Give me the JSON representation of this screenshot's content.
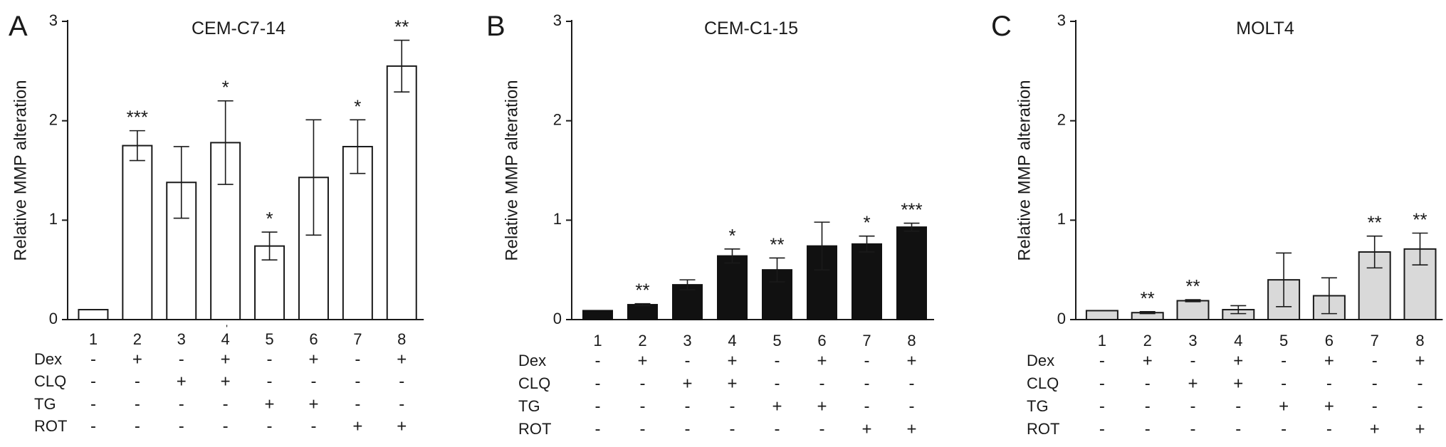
{
  "chart_data": [
    {
      "panel_label": "A",
      "type": "bar",
      "title": "CEM-C7-14",
      "ylabel": "Relative MMP alteration",
      "ylim": [
        0,
        3
      ],
      "yticks": [
        "0",
        "1",
        "2",
        "3"
      ],
      "categories": [
        "1",
        "2",
        "3",
        "4",
        "5",
        "6",
        "7",
        "8"
      ],
      "values": [
        0.1,
        1.75,
        1.38,
        1.78,
        0.74,
        1.43,
        1.74,
        2.55
      ],
      "errors": [
        0.0,
        0.15,
        0.36,
        0.42,
        0.14,
        0.58,
        0.27,
        0.26
      ],
      "significance": [
        "",
        "***",
        "",
        "*",
        "*",
        "",
        "*",
        "**"
      ],
      "bar_fill": "#ffffff",
      "bar_stroke": "#1a1a1a",
      "extra_mark_on_category_4": "'",
      "treatments": [
        {
          "name": "Dex",
          "signs": [
            "-",
            "+",
            "-",
            "+",
            "-",
            "+",
            "-",
            "+"
          ]
        },
        {
          "name": "CLQ",
          "signs": [
            "-",
            "-",
            "+",
            "+",
            "-",
            "-",
            "-",
            "-"
          ]
        },
        {
          "name": "TG",
          "signs": [
            "-",
            "-",
            "-",
            "-",
            "+",
            "+",
            "-",
            "-"
          ]
        },
        {
          "name": "ROT",
          "signs": [
            "-",
            "-",
            "-",
            "-",
            "-",
            "-",
            "+",
            "+"
          ]
        }
      ]
    },
    {
      "panel_label": "B",
      "type": "bar",
      "title": "CEM-C1-15",
      "ylabel": "Relative MMP alteration",
      "ylim": [
        0,
        3
      ],
      "yticks": [
        "0",
        "1",
        "2",
        "3"
      ],
      "categories": [
        "1",
        "2",
        "3",
        "4",
        "5",
        "6",
        "7",
        "8"
      ],
      "values": [
        0.09,
        0.15,
        0.35,
        0.64,
        0.5,
        0.74,
        0.76,
        0.93
      ],
      "errors": [
        0.0,
        0.01,
        0.05,
        0.07,
        0.12,
        0.24,
        0.08,
        0.04
      ],
      "significance": [
        "",
        "**",
        "",
        "*",
        "**",
        "",
        "*",
        "***"
      ],
      "bar_fill": "#111111",
      "bar_stroke": "#111111",
      "treatments": [
        {
          "name": "Dex",
          "signs": [
            "-",
            "+",
            "-",
            "+",
            "-",
            "+",
            "-",
            "+"
          ]
        },
        {
          "name": "CLQ",
          "signs": [
            "-",
            "-",
            "+",
            "+",
            "-",
            "-",
            "-",
            "-"
          ]
        },
        {
          "name": "TG",
          "signs": [
            "-",
            "-",
            "-",
            "-",
            "+",
            "+",
            "-",
            "-"
          ]
        },
        {
          "name": "ROT",
          "signs": [
            "-",
            "-",
            "-",
            "-",
            "-",
            "-",
            "+",
            "+"
          ]
        }
      ]
    },
    {
      "panel_label": "C",
      "type": "bar",
      "title": "MOLT4",
      "ylabel": "Relative MMP alteration",
      "ylim": [
        0,
        3
      ],
      "yticks": [
        "0",
        "1",
        "2",
        "3"
      ],
      "categories": [
        "1",
        "2",
        "3",
        "4",
        "5",
        "6",
        "7",
        "8"
      ],
      "values": [
        0.09,
        0.07,
        0.19,
        0.1,
        0.4,
        0.24,
        0.68,
        0.71
      ],
      "errors": [
        0.0,
        0.01,
        0.01,
        0.04,
        0.27,
        0.18,
        0.16,
        0.16
      ],
      "significance": [
        "",
        "**",
        "**",
        "",
        "",
        "",
        "**",
        "**"
      ],
      "bar_fill": "#d9d9d9",
      "bar_stroke": "#1a1a1a",
      "treatments": [
        {
          "name": "Dex",
          "signs": [
            "-",
            "+",
            "-",
            "+",
            "-",
            "+",
            "-",
            "+"
          ]
        },
        {
          "name": "CLQ",
          "signs": [
            "-",
            "-",
            "+",
            "+",
            "-",
            "-",
            "-",
            "-"
          ]
        },
        {
          "name": "TG",
          "signs": [
            "-",
            "-",
            "-",
            "-",
            "+",
            "+",
            "-",
            "-"
          ]
        },
        {
          "name": "ROT",
          "signs": [
            "-",
            "-",
            "-",
            "-",
            "-",
            "-",
            "+",
            "+"
          ]
        }
      ]
    }
  ]
}
